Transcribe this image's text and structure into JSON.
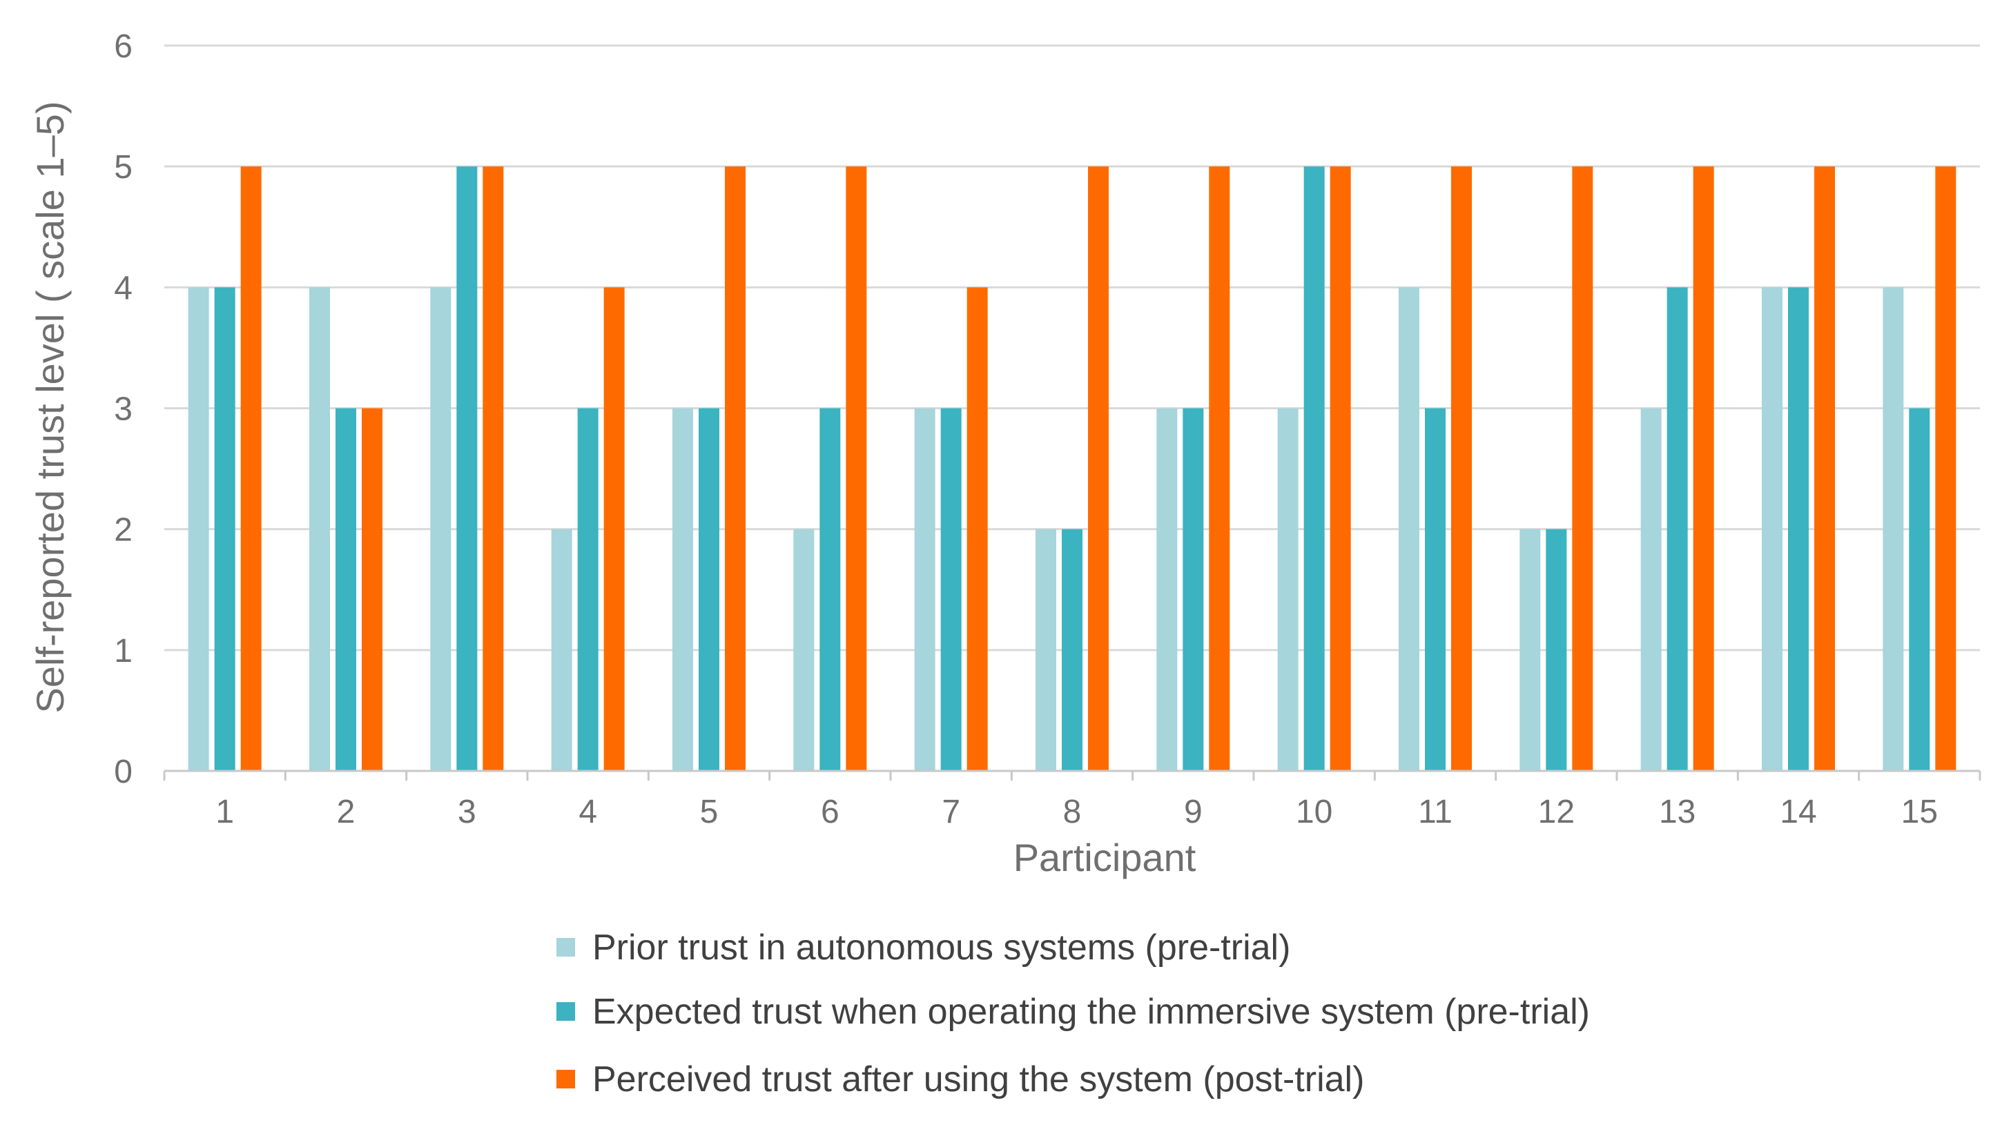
{
  "chart_data": {
    "type": "bar",
    "title": "",
    "xlabel": "Participant",
    "ylabel": "Self-reported trust level ( scale 1–5)",
    "ylim": [
      0,
      6
    ],
    "yticks": [
      "0",
      "1",
      "2",
      "3",
      "4",
      "5",
      "6"
    ],
    "grid": true,
    "legend_position": "bottom",
    "categories": [
      "1",
      "2",
      "3",
      "4",
      "5",
      "6",
      "7",
      "8",
      "9",
      "10",
      "11",
      "12",
      "13",
      "14",
      "15"
    ],
    "series": [
      {
        "name": "Prior trust in autonomous systems (pre-trial)",
        "color": "#a6d5db",
        "values": [
          4,
          4,
          4,
          2,
          3,
          2,
          3,
          2,
          3,
          3,
          4,
          2,
          3,
          4,
          4
        ]
      },
      {
        "name": "Expected trust when operating the immersive system (pre-trial)",
        "color": "#3bb3c0",
        "values": [
          4,
          3,
          5,
          3,
          3,
          3,
          3,
          2,
          3,
          5,
          3,
          2,
          4,
          4,
          3
        ]
      },
      {
        "name": "Perceived trust after using the system (post-trial)",
        "color": "#ff6a00",
        "values": [
          5,
          3,
          5,
          4,
          5,
          5,
          4,
          5,
          5,
          5,
          5,
          5,
          5,
          5,
          5
        ]
      }
    ]
  }
}
